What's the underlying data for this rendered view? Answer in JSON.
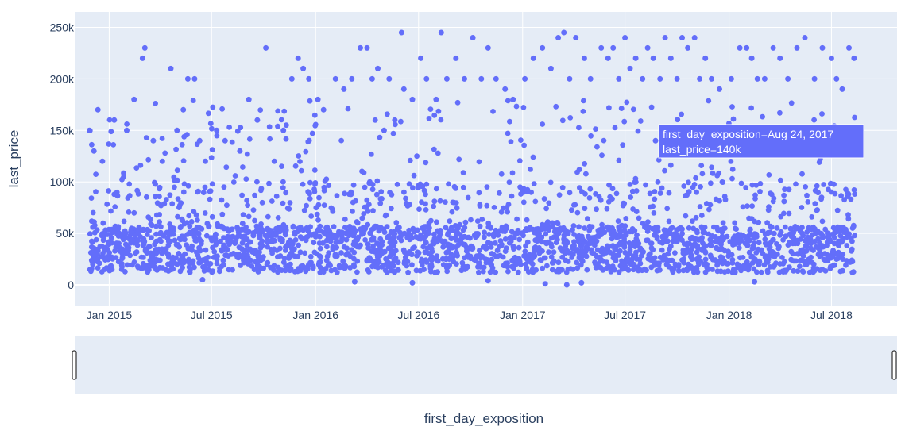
{
  "chart_data": {
    "type": "scatter",
    "xlabel": "first_day_exposition",
    "ylabel": "last_price",
    "x_range": [
      "2014-11-01",
      "2018-10-25"
    ],
    "y_range": [
      -20000,
      265000
    ],
    "x_ticks": [
      {
        "date": "2015-01-01",
        "label": "Jan 2015"
      },
      {
        "date": "2015-07-01",
        "label": "Jul 2015"
      },
      {
        "date": "2016-01-01",
        "label": "Jan 2016"
      },
      {
        "date": "2016-07-01",
        "label": "Jul 2016"
      },
      {
        "date": "2017-01-01",
        "label": "Jan 2017"
      },
      {
        "date": "2017-07-01",
        "label": "Jul 2017"
      },
      {
        "date": "2018-01-01",
        "label": "Jan 2018"
      },
      {
        "date": "2018-07-01",
        "label": "Jul 2018"
      }
    ],
    "y_ticks": [
      {
        "value": 0,
        "label": "0"
      },
      {
        "value": 50000,
        "label": "50k"
      },
      {
        "value": 100000,
        "label": "100k"
      },
      {
        "value": 150000,
        "label": "150k"
      },
      {
        "value": 200000,
        "label": "200k"
      },
      {
        "value": 250000,
        "label": "250k"
      }
    ],
    "series": [
      {
        "points": [
          [
            "2014-11-27",
            150000
          ],
          [
            "2014-12-05",
            130000
          ],
          [
            "2014-12-12",
            170000
          ],
          [
            "2014-12-20",
            120000
          ],
          [
            "2015-01-10",
            160000
          ],
          [
            "2015-02-01",
            150000
          ],
          [
            "2015-02-14",
            180000
          ],
          [
            "2015-03-01",
            220000
          ],
          [
            "2015-03-05",
            230000
          ],
          [
            "2015-03-20",
            140000
          ],
          [
            "2015-04-05",
            120000
          ],
          [
            "2015-04-20",
            210000
          ],
          [
            "2015-05-01",
            150000
          ],
          [
            "2015-05-12",
            170000
          ],
          [
            "2015-05-20",
            200000
          ],
          [
            "2015-06-01",
            200000
          ],
          [
            "2015-06-10",
            140000
          ],
          [
            "2015-06-20",
            120000
          ],
          [
            "2015-07-10",
            150000
          ],
          [
            "2015-07-25",
            140000
          ],
          [
            "2015-08-20",
            130000
          ],
          [
            "2015-09-05",
            180000
          ],
          [
            "2015-09-20",
            160000
          ],
          [
            "2015-10-05",
            230000
          ],
          [
            "2015-10-20",
            120000
          ],
          [
            "2015-11-05",
            150000
          ],
          [
            "2015-11-20",
            200000
          ],
          [
            "2015-12-01",
            220000
          ],
          [
            "2015-12-10",
            210000
          ],
          [
            "2015-12-20",
            200000
          ],
          [
            "2016-01-05",
            180000
          ],
          [
            "2016-01-15",
            170000
          ],
          [
            "2016-02-05",
            200000
          ],
          [
            "2016-02-20",
            190000
          ],
          [
            "2016-03-05",
            200000
          ],
          [
            "2016-03-20",
            230000
          ],
          [
            "2016-04-01",
            230000
          ],
          [
            "2016-04-10",
            200000
          ],
          [
            "2016-04-20",
            210000
          ],
          [
            "2016-05-01",
            150000
          ],
          [
            "2016-05-10",
            200000
          ],
          [
            "2016-05-20",
            160000
          ],
          [
            "2016-06-01",
            245000
          ],
          [
            "2016-06-05",
            190000
          ],
          [
            "2016-06-20",
            180000
          ],
          [
            "2016-07-05",
            220000
          ],
          [
            "2016-07-15",
            200000
          ],
          [
            "2016-08-01",
            180000
          ],
          [
            "2016-08-10",
            245000
          ],
          [
            "2016-08-20",
            200000
          ],
          [
            "2016-09-05",
            220000
          ],
          [
            "2016-09-20",
            200000
          ],
          [
            "2016-10-05",
            240000
          ],
          [
            "2016-10-20",
            200000
          ],
          [
            "2016-11-01",
            230000
          ],
          [
            "2016-11-15",
            200000
          ],
          [
            "2016-12-01",
            190000
          ],
          [
            "2016-12-15",
            180000
          ],
          [
            "2017-01-05",
            200000
          ],
          [
            "2017-01-20",
            220000
          ],
          [
            "2017-02-05",
            230000
          ],
          [
            "2017-02-20",
            210000
          ],
          [
            "2017-03-05",
            240000
          ],
          [
            "2017-03-15",
            245000
          ],
          [
            "2017-03-25",
            200000
          ],
          [
            "2017-04-05",
            240000
          ],
          [
            "2017-04-20",
            220000
          ],
          [
            "2017-05-01",
            200000
          ],
          [
            "2017-05-20",
            230000
          ],
          [
            "2017-06-01",
            220000
          ],
          [
            "2017-06-10",
            230000
          ],
          [
            "2017-06-20",
            200000
          ],
          [
            "2017-07-01",
            240000
          ],
          [
            "2017-07-10",
            210000
          ],
          [
            "2017-07-20",
            220000
          ],
          [
            "2017-08-01",
            200000
          ],
          [
            "2017-08-10",
            230000
          ],
          [
            "2017-08-20",
            220000
          ],
          [
            "2017-08-24",
            140000
          ],
          [
            "2017-09-01",
            200000
          ],
          [
            "2017-09-10",
            240000
          ],
          [
            "2017-09-20",
            220000
          ],
          [
            "2017-10-01",
            200000
          ],
          [
            "2017-10-10",
            240000
          ],
          [
            "2017-10-20",
            230000
          ],
          [
            "2017-11-01",
            240000
          ],
          [
            "2017-11-10",
            200000
          ],
          [
            "2017-11-20",
            220000
          ],
          [
            "2017-12-01",
            200000
          ],
          [
            "2017-12-15",
            190000
          ],
          [
            "2018-01-05",
            200000
          ],
          [
            "2018-01-20",
            230000
          ],
          [
            "2018-02-01",
            230000
          ],
          [
            "2018-02-10",
            220000
          ],
          [
            "2018-02-20",
            200000
          ],
          [
            "2018-03-05",
            200000
          ],
          [
            "2018-03-20",
            230000
          ],
          [
            "2018-04-01",
            220000
          ],
          [
            "2018-04-15",
            200000
          ],
          [
            "2018-05-01",
            230000
          ],
          [
            "2018-05-15",
            240000
          ],
          [
            "2018-06-01",
            200000
          ],
          [
            "2018-06-15",
            230000
          ],
          [
            "2018-07-01",
            220000
          ],
          [
            "2018-07-10",
            200000
          ],
          [
            "2018-07-20",
            190000
          ],
          [
            "2018-08-01",
            230000
          ],
          [
            "2018-08-10",
            220000
          ],
          [
            "2015-06-15",
            5000
          ],
          [
            "2016-03-10",
            3000
          ],
          [
            "2016-06-20",
            2000
          ],
          [
            "2017-02-10",
            1000
          ],
          [
            "2017-03-20",
            0
          ],
          [
            "2017-04-15",
            2000
          ],
          [
            "2016-11-01",
            4000
          ],
          [
            "2018-02-15",
            3000
          ]
        ]
      }
    ],
    "hover": {
      "line1": "first_day_exposition=Aug 24, 2017",
      "line2": "last_price=140k"
    }
  },
  "colors": {
    "marker": "#636efa",
    "plot_bg": "#e5ecf6",
    "grid": "#ffffff",
    "text": "#2a3f5f"
  }
}
